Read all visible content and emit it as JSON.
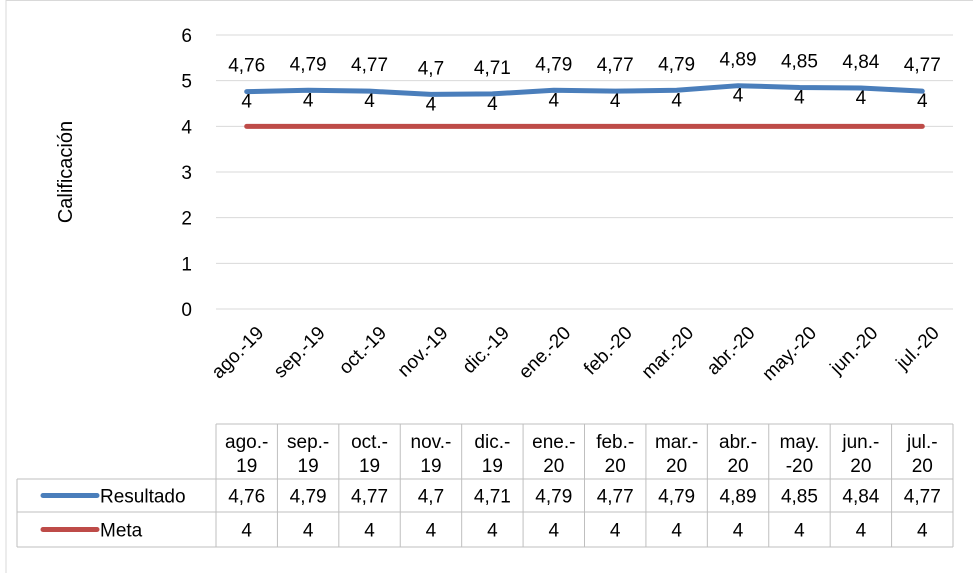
{
  "chart_data": {
    "type": "line",
    "title": "",
    "xlabel": "",
    "ylabel": "Calificación",
    "ylim": [
      0,
      6
    ],
    "yticks": [
      "0",
      "1",
      "2",
      "3",
      "4",
      "5",
      "6"
    ],
    "grid": true,
    "categories": [
      "ago.-19",
      "sep.-19",
      "oct.-19",
      "nov.-19",
      "dic.-19",
      "ene.-20",
      "feb.-20",
      "mar.-20",
      "abr.-20",
      "may.-20",
      "jun.-20",
      "jul.-20"
    ],
    "table_headers": [
      [
        "ago.-",
        "19"
      ],
      [
        "sep.-",
        "19"
      ],
      [
        "oct.-",
        "19"
      ],
      [
        "nov.-",
        "19"
      ],
      [
        "dic.-",
        "19"
      ],
      [
        "ene.-",
        "20"
      ],
      [
        "feb.-",
        "20"
      ],
      [
        "mar.-",
        "20"
      ],
      [
        "abr.-",
        "20"
      ],
      [
        "may.",
        "-20"
      ],
      [
        "jun.-",
        "20"
      ],
      [
        "jul.-",
        "20"
      ]
    ],
    "series": [
      {
        "name": "Resultado",
        "color": "#4a7ebb",
        "values": [
          4.76,
          4.79,
          4.77,
          4.7,
          4.71,
          4.79,
          4.77,
          4.79,
          4.89,
          4.85,
          4.84,
          4.77
        ],
        "labels": [
          "4,76",
          "4,79",
          "4,77",
          "4,7",
          "4,71",
          "4,79",
          "4,77",
          "4,79",
          "4,89",
          "4,85",
          "4,84",
          "4,77"
        ]
      },
      {
        "name": "Meta",
        "color": "#be4b48",
        "values": [
          4,
          4,
          4,
          4,
          4,
          4,
          4,
          4,
          4,
          4,
          4,
          4
        ],
        "labels": [
          "4",
          "4",
          "4",
          "4",
          "4",
          "4",
          "4",
          "4",
          "4",
          "4",
          "4",
          "4"
        ]
      }
    ]
  }
}
